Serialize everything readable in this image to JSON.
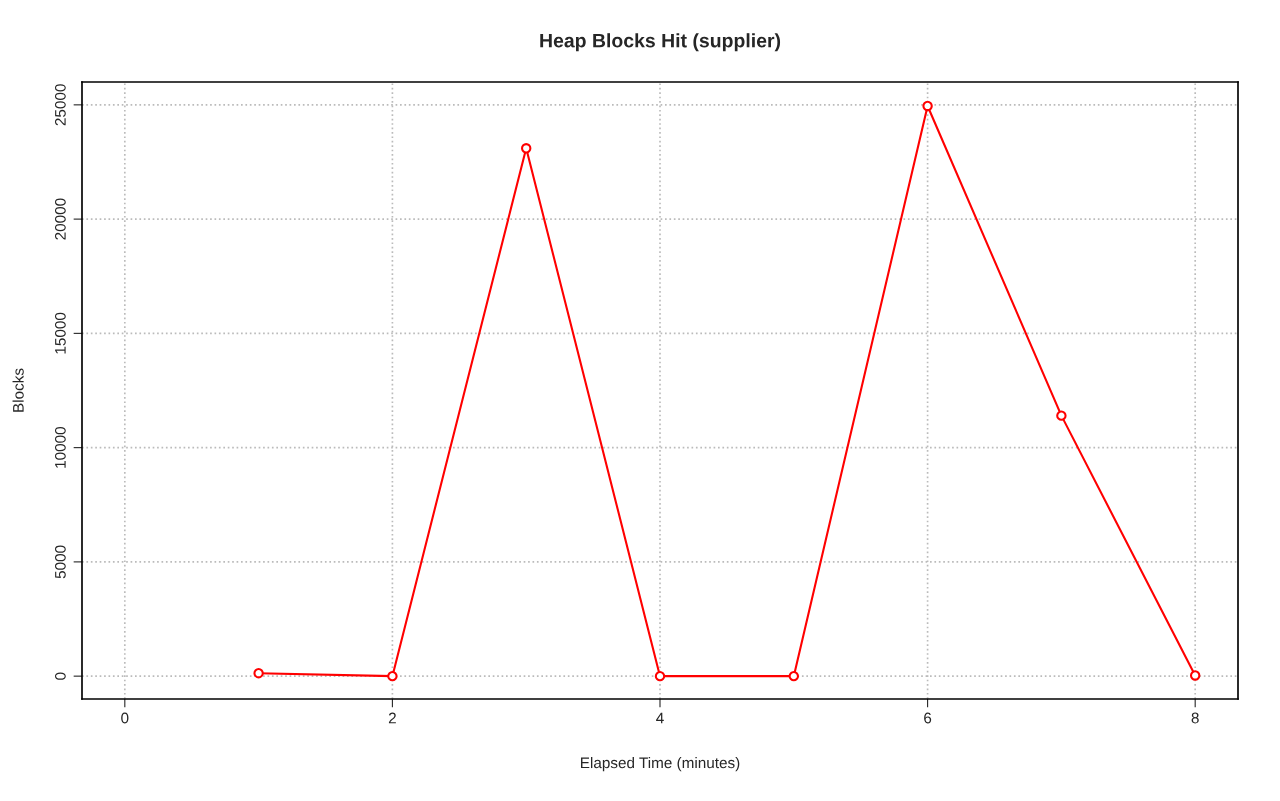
{
  "chart_data": {
    "type": "line",
    "title": "Heap Blocks Hit (supplier)",
    "xlabel": "Elapsed Time (minutes)",
    "ylabel": "Blocks",
    "x": [
      1,
      2,
      3,
      4,
      5,
      6,
      7,
      8
    ],
    "series": [
      {
        "color": "#ff0000",
        "values": [
          130,
          0,
          23100,
          0,
          0,
          24950,
          11400,
          30
        ]
      }
    ],
    "xlim": [
      -0.32,
      8.32
    ],
    "xticks": [
      0,
      2,
      4,
      6,
      8
    ],
    "ylim": [
      -1000,
      26000
    ],
    "yticks": [
      0,
      5000,
      10000,
      15000,
      20000,
      25000
    ],
    "grid": true,
    "marker": "circle",
    "line_style": "solid"
  }
}
